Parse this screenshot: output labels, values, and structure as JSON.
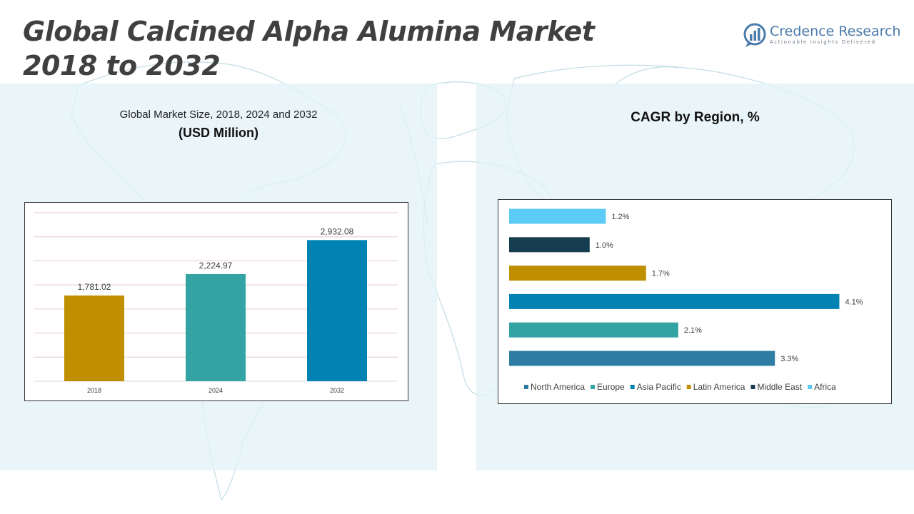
{
  "header": {
    "title_line1": "Global Calcined Alpha Alumina Market",
    "title_line2": "2018 to 2032"
  },
  "logo": {
    "name": "Credence Research",
    "tagline": "Actionable Insights Delivered",
    "icon": "credence-logo-icon",
    "color": "#4a7bab"
  },
  "left_panel": {
    "subtitle": "Global Market Size, 2018, 2024 and 2032",
    "unit": "(USD Million)"
  },
  "right_panel": {
    "title": "CAGR by Region, %"
  },
  "chart_data": [
    {
      "type": "bar",
      "categories": [
        "2018",
        "2024",
        "2032"
      ],
      "values": [
        1781.02,
        2224.97,
        2932.08
      ],
      "data_labels": [
        "1,781.02",
        "2,224.97",
        "2,932.08"
      ],
      "colors": [
        "#bf8f00",
        "#33a3a3",
        "#0083b3"
      ],
      "ylim": [
        0,
        3500
      ],
      "grid": true,
      "legend": "none"
    },
    {
      "type": "bar",
      "orientation": "horizontal",
      "categories": [
        "North America",
        "Europe",
        "Asia Pacific",
        "Latin America",
        "Middle East",
        "Africa"
      ],
      "values": [
        3.3,
        2.1,
        4.1,
        1.7,
        1.0,
        1.2
      ],
      "data_labels": [
        "3.3%",
        "2.1%",
        "4.1%",
        "1.7%",
        "1.0%",
        "1.2%"
      ],
      "colors": [
        "#2e7ca3",
        "#33a3a3",
        "#0083b3",
        "#bf8f00",
        "#163d4f",
        "#5ccbf5"
      ],
      "xlim": [
        0,
        4.3
      ],
      "grid": false,
      "legend": "bottom"
    }
  ]
}
